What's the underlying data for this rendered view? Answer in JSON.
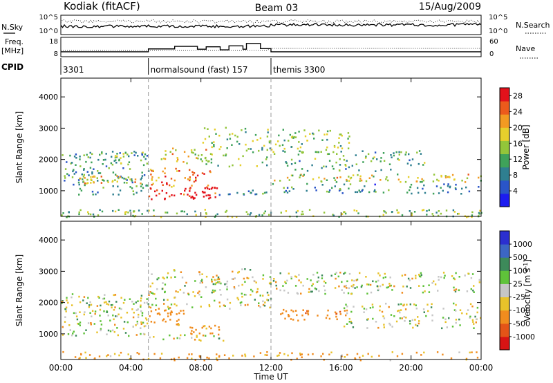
{
  "header": {
    "station": "Kodiak (fitACF)",
    "beam": "Beam 03",
    "date": "15/Aug/2009"
  },
  "summary_panels": {
    "left_labels": {
      "nsky": "N.Sky",
      "freq_top": "Freq.",
      "freq_bottom": "[MHz]",
      "cpid": "CPID"
    },
    "right_labels": {
      "nsearch": "N.Search",
      "nave": "Nave"
    },
    "noise_axis_ticks": [
      "10^5",
      "10^0"
    ],
    "noise_right_ticks": [
      "10^5",
      "10^0"
    ],
    "freq_axis_ticks": [
      "18",
      "8"
    ],
    "nave_axis_ticks": [
      "60",
      "0"
    ],
    "cpid_segments": [
      {
        "start": "00:00",
        "end": "05:00",
        "label": "3301"
      },
      {
        "start": "05:00",
        "end": "12:00",
        "label": "normalsound (fast) 157"
      },
      {
        "start": "12:00",
        "end": "24:00",
        "label": "themis 3300"
      }
    ],
    "freq_steps": [
      {
        "t": 0,
        "f": 10.3
      },
      {
        "t": 5,
        "f": 10.3
      },
      {
        "t": 5.0,
        "f": 12.2
      },
      {
        "t": 6.5,
        "f": 13.9
      },
      {
        "t": 7.8,
        "f": 12.0
      },
      {
        "t": 8.3,
        "f": 13.6
      },
      {
        "t": 9.1,
        "f": 11.6
      },
      {
        "t": 9.6,
        "f": 14.2
      },
      {
        "t": 10.4,
        "f": 12.0
      },
      {
        "t": 10.6,
        "f": 15.8
      },
      {
        "t": 11.4,
        "f": 12.4
      },
      {
        "t": 12.0,
        "f": 10.3
      },
      {
        "t": 24,
        "f": 10.3
      }
    ]
  },
  "chart_data": [
    {
      "type": "heatmap",
      "name": "power",
      "xlabel": "Time UT",
      "ylabel": "Slant Range [km]",
      "xlim": [
        0,
        24
      ],
      "ylim": [
        180,
        4600
      ],
      "x_ticks": [
        "00:00",
        "04:00",
        "08:00",
        "12:00",
        "16:00",
        "20:00",
        "00:00"
      ],
      "y_ticks": [
        1000,
        2000,
        3000,
        4000
      ],
      "colorbar": {
        "label": "Power [dB]",
        "ticks": [
          4,
          8,
          12,
          16,
          20,
          24,
          28
        ],
        "range": [
          0,
          30
        ],
        "colors": [
          "#1c1cf0",
          "#2a55c8",
          "#2f7f90",
          "#3fa25a",
          "#93c53a",
          "#e6cf2c",
          "#f29a22",
          "#ec5a1c",
          "#e3111b"
        ]
      },
      "scatter_regions": [
        {
          "t0": 0.0,
          "t1": 5.0,
          "r0": 900,
          "r1": 2300,
          "power": 10,
          "density": 0.55
        },
        {
          "t0": 0.3,
          "t1": 4.8,
          "r0": 1250,
          "r1": 1550,
          "power": 18,
          "density": 0.9
        },
        {
          "t0": 2.0,
          "t1": 4.8,
          "r0": 1900,
          "r1": 2250,
          "power": 14,
          "density": 0.6
        },
        {
          "t0": 5.0,
          "t1": 9.0,
          "r0": 750,
          "r1": 1150,
          "power": 29,
          "density": 0.95
        },
        {
          "t0": 5.0,
          "t1": 8.5,
          "r0": 1150,
          "r1": 1750,
          "power": 24,
          "density": 0.7
        },
        {
          "t0": 5.5,
          "t1": 8.5,
          "r0": 1900,
          "r1": 2400,
          "power": 18,
          "density": 0.55
        },
        {
          "t0": 8.0,
          "t1": 12.0,
          "r0": 1800,
          "r1": 3050,
          "power": 14,
          "density": 0.45
        },
        {
          "t0": 9.0,
          "t1": 12.0,
          "r0": 800,
          "r1": 1100,
          "power": 9,
          "density": 0.5
        },
        {
          "t0": 12.0,
          "t1": 16.5,
          "r0": 2200,
          "r1": 3000,
          "power": 14,
          "density": 0.55
        },
        {
          "t0": 12.0,
          "t1": 24.0,
          "r0": 1300,
          "r1": 1550,
          "power": 18,
          "density": 0.75
        },
        {
          "t0": 12.5,
          "t1": 21.0,
          "r0": 1650,
          "r1": 2300,
          "power": 12,
          "density": 0.45
        },
        {
          "t0": 12.0,
          "t1": 24.0,
          "r0": 900,
          "r1": 1250,
          "power": 9,
          "density": 0.5
        },
        {
          "t0": 0.0,
          "t1": 24.0,
          "r0": 180,
          "r1": 420,
          "power": 14,
          "density": 0.75
        }
      ]
    },
    {
      "type": "heatmap",
      "name": "velocity",
      "xlabel": "Time UT",
      "ylabel": "Slant Range [km]",
      "xlim": [
        0,
        24
      ],
      "ylim": [
        180,
        4600
      ],
      "x_ticks": [
        "00:00",
        "04:00",
        "08:00",
        "12:00",
        "16:00",
        "20:00",
        "00:00"
      ],
      "y_ticks": [
        1000,
        2000,
        3000,
        4000
      ],
      "colorbar": {
        "label": "Velocity [m s^-1]",
        "ticks": [
          "1000",
          "500",
          "100",
          "25",
          "-25",
          "-100",
          "-500",
          "-1000"
        ],
        "colors": [
          "#2b2fd0",
          "#3c66c4",
          "#3d8a5a",
          "#5fc23a",
          "#c6c6c6",
          "#e8c22a",
          "#f08c1e",
          "#e45418",
          "#d81414"
        ]
      },
      "scatter_regions": [
        {
          "t0": 0.0,
          "t1": 5.0,
          "r0": 950,
          "r1": 2300,
          "vel": 0,
          "density": 0.7
        },
        {
          "t0": 5.0,
          "t1": 7.0,
          "r0": 1300,
          "r1": 1900,
          "vel": -300,
          "density": 0.8
        },
        {
          "t0": 6.5,
          "t1": 9.0,
          "r0": 900,
          "r1": 1350,
          "vel": -200,
          "density": 0.7
        },
        {
          "t0": 5.0,
          "t1": 12.0,
          "r0": 1800,
          "r1": 3100,
          "vel": 0,
          "density": 0.55
        },
        {
          "t0": 5.0,
          "t1": 9.5,
          "r0": 800,
          "r1": 1000,
          "vel": 0,
          "density": 0.6
        },
        {
          "t0": 12.5,
          "t1": 16.0,
          "r0": 1450,
          "r1": 1800,
          "vel": -400,
          "density": 0.85
        },
        {
          "t0": 12.0,
          "t1": 24.0,
          "r0": 2300,
          "r1": 3000,
          "vel": 0,
          "density": 0.6
        },
        {
          "t0": 16.0,
          "t1": 24.0,
          "r0": 1200,
          "r1": 2000,
          "vel": 0,
          "density": 0.55
        },
        {
          "t0": 0.0,
          "t1": 24.0,
          "r0": 180,
          "r1": 450,
          "vel": -150,
          "density": 0.5
        }
      ]
    }
  ]
}
